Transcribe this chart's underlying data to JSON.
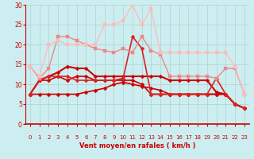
{
  "xlabel": "Vent moyen/en rafales ( km/h )",
  "xlim": [
    -0.5,
    23.5
  ],
  "ylim": [
    0,
    30
  ],
  "yticks": [
    0,
    5,
    10,
    15,
    20,
    25,
    30
  ],
  "xticks": [
    0,
    1,
    2,
    3,
    4,
    5,
    6,
    7,
    8,
    9,
    10,
    11,
    12,
    13,
    14,
    15,
    16,
    17,
    18,
    19,
    20,
    21,
    22,
    23
  ],
  "bg_color": "#cceef0",
  "grid_color": "#b0d0d0",
  "series": [
    {
      "x": [
        0,
        1,
        2,
        3,
        4,
        5,
        6,
        7,
        8,
        9,
        10,
        11,
        12,
        13,
        14,
        15,
        16,
        17,
        18,
        19,
        20,
        21,
        22,
        23
      ],
      "y": [
        7.5,
        7.5,
        7.5,
        7.5,
        7.5,
        7.5,
        8,
        8.5,
        9,
        10,
        10.5,
        10,
        9.5,
        9,
        8.5,
        7.5,
        7.5,
        7.5,
        7.5,
        7.5,
        7.5,
        7.5,
        5,
        4
      ],
      "color": "#cc0000",
      "lw": 1.2,
      "marker": "D",
      "ms": 2.5
    },
    {
      "x": [
        0,
        1,
        2,
        3,
        4,
        5,
        6,
        7,
        8,
        9,
        10,
        11,
        12,
        13,
        14,
        15,
        16,
        17,
        18,
        19,
        20,
        21,
        22,
        23
      ],
      "y": [
        7.5,
        11,
        11,
        12,
        11,
        12,
        12,
        11,
        11,
        11,
        11,
        11,
        10,
        7.5,
        7.5,
        7.5,
        7.5,
        7.5,
        7.5,
        7.5,
        7.5,
        7.5,
        5,
        4
      ],
      "color": "#cc0000",
      "lw": 1.2,
      "marker": "D",
      "ms": 2.5
    },
    {
      "x": [
        0,
        1,
        2,
        3,
        4,
        5,
        6,
        7,
        8,
        9,
        10,
        11,
        12,
        13,
        14,
        15,
        16,
        17,
        18,
        19,
        20,
        21,
        22,
        23
      ],
      "y": [
        7.5,
        11,
        12,
        13,
        14.5,
        14,
        14,
        12,
        12,
        12,
        12,
        12,
        12,
        12,
        12,
        11,
        11,
        11,
        11,
        11,
        8,
        7.5,
        5,
        4
      ],
      "color": "#cc0000",
      "lw": 1.5,
      "marker": "D",
      "ms": 2.5
    },
    {
      "x": [
        0,
        1,
        2,
        3,
        4,
        5,
        6,
        7,
        8,
        9,
        10,
        11,
        12,
        13,
        14,
        15,
        16,
        17,
        18,
        19,
        20,
        21,
        22,
        23
      ],
      "y": [
        7.5,
        11,
        12,
        12,
        12,
        11,
        11,
        11,
        11,
        11,
        11.5,
        22,
        19,
        7.5,
        7.5,
        7.5,
        7.5,
        7.5,
        7.5,
        7.5,
        11.5,
        7.5,
        5,
        4
      ],
      "color": "#dd2222",
      "lw": 1.2,
      "marker": "D",
      "ms": 2.5
    },
    {
      "x": [
        0,
        1,
        2,
        3,
        4,
        5,
        6,
        7,
        8,
        9,
        10,
        11,
        12,
        13,
        14,
        15,
        16,
        17,
        18,
        19,
        20,
        21,
        22,
        23
      ],
      "y": [
        14.5,
        11.5,
        14,
        22,
        22,
        21,
        20,
        19,
        18.5,
        18,
        19,
        18,
        22,
        18.5,
        17.5,
        12,
        12,
        12,
        12,
        12,
        11.5,
        14,
        14,
        7.5
      ],
      "color": "#ee8888",
      "lw": 1.0,
      "marker": "s",
      "ms": 2.5
    },
    {
      "x": [
        0,
        1,
        2,
        3,
        4,
        5,
        6,
        7,
        8,
        9,
        10,
        11,
        12,
        13,
        14,
        15,
        16,
        17,
        18,
        19,
        20,
        21,
        22,
        23
      ],
      "y": [
        14.5,
        12,
        20,
        21,
        20,
        20,
        20,
        20,
        25,
        25,
        26,
        30,
        25,
        29,
        18,
        18,
        18,
        18,
        18,
        18,
        18,
        18,
        14.5,
        7.5
      ],
      "color": "#ffbbbb",
      "lw": 1.0,
      "marker": "s",
      "ms": 2.5
    }
  ],
  "arrow_symbols": [
    "↗",
    "↗",
    "↗",
    "↗",
    "↗",
    "↗",
    "↗",
    "→",
    "→",
    "→",
    "→",
    "↘",
    "→",
    "↗",
    "↗",
    "↗",
    "↗",
    "→",
    "→",
    "→",
    "→",
    "↙",
    "↙"
  ],
  "arrow_color": "#cc0000"
}
